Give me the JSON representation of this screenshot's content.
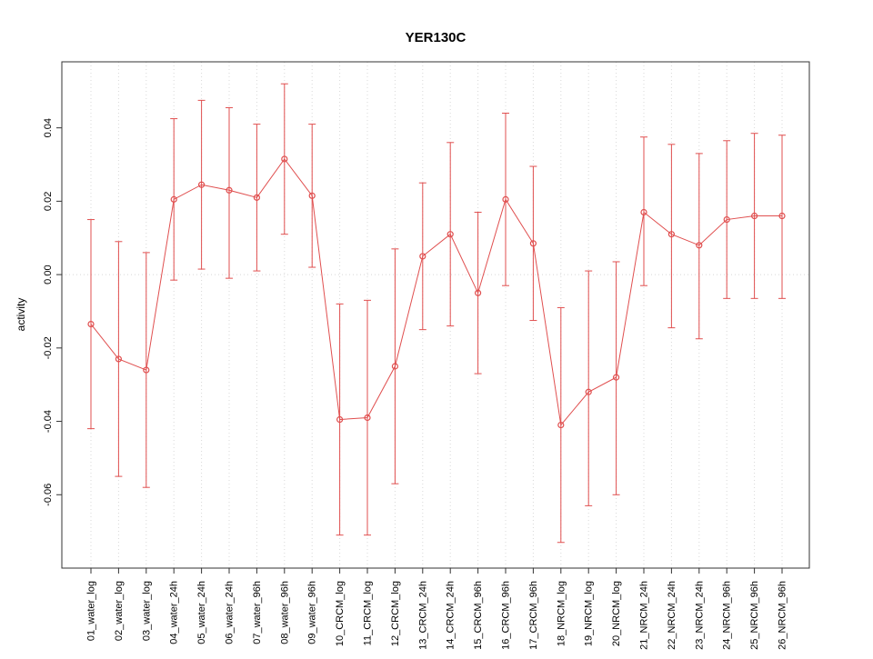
{
  "title": "YER130C",
  "chart_data": {
    "type": "line",
    "title": "YER130C",
    "xlabel": "",
    "ylabel": "activity",
    "ylim": [
      -0.08,
      0.058
    ],
    "yticks": [
      -0.06,
      -0.04,
      -0.02,
      0.0,
      0.02,
      0.04
    ],
    "grid": "vertical-dotted",
    "zero_line_at": 0,
    "legend": "none",
    "colors": {
      "series": "#e04f4f",
      "grid": "#d8d8d8",
      "axis": "#333333"
    },
    "point_style": "open-circle",
    "error_bars": true,
    "categories": [
      "01_water_log",
      "02_water_log",
      "03_water_log",
      "04_water_24h",
      "05_water_24h",
      "06_water_24h",
      "07_water_96h",
      "08_water_96h",
      "09_water_96h",
      "10_CRCM_log",
      "11_CRCM_log",
      "12_CRCM_log",
      "13_CRCM_24h",
      "14_CRCM_24h",
      "15_CRCM_96h",
      "16_CRCM_96h",
      "17_CRCM_96h",
      "18_NRCM_log",
      "19_NRCM_log",
      "20_NRCM_log",
      "21_NRCM_24h",
      "22_NRCM_24h",
      "23_NRCM_24h",
      "24_NRCM_96h",
      "25_NRCM_96h",
      "26_NRCM_96h"
    ],
    "series": [
      {
        "name": "activity",
        "center": [
          -0.0135,
          -0.023,
          -0.026,
          0.0205,
          0.0245,
          0.023,
          0.021,
          0.0315,
          0.0215,
          -0.0395,
          -0.039,
          -0.025,
          0.005,
          0.011,
          -0.005,
          0.0205,
          0.0085,
          -0.041,
          -0.032,
          -0.028,
          0.017,
          0.011,
          0.008,
          0.015,
          0.016,
          0.016
        ],
        "upper": [
          0.015,
          0.009,
          0.006,
          0.0425,
          0.0475,
          0.0455,
          0.041,
          0.052,
          0.041,
          -0.008,
          -0.007,
          0.007,
          0.025,
          0.036,
          0.017,
          0.044,
          0.0295,
          -0.009,
          0.001,
          0.0035,
          0.0375,
          0.0355,
          0.033,
          0.0365,
          0.0385,
          0.038
        ],
        "lower": [
          -0.042,
          -0.055,
          -0.058,
          -0.0015,
          0.0015,
          -0.001,
          0.001,
          0.011,
          0.002,
          -0.071,
          -0.071,
          -0.057,
          -0.015,
          -0.014,
          -0.027,
          -0.003,
          -0.0125,
          -0.073,
          -0.063,
          -0.06,
          -0.003,
          -0.0145,
          -0.0175,
          -0.0065,
          -0.0065,
          -0.0065
        ]
      }
    ]
  }
}
